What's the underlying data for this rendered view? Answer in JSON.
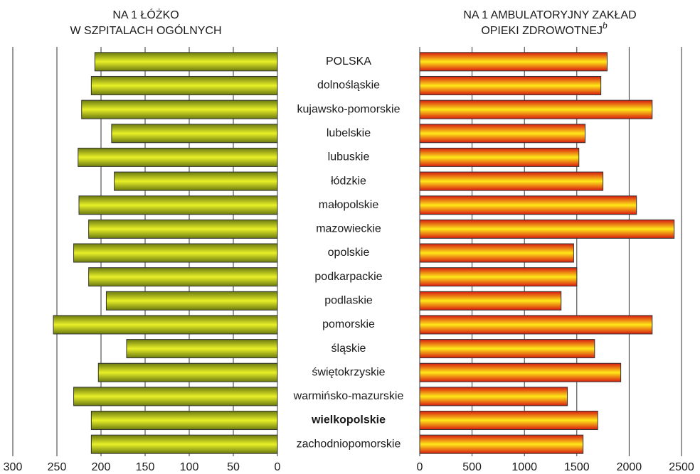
{
  "chart_data": [
    {
      "type": "hbar",
      "title": [
        "NA 1 ŁÓŻKO",
        "W SZPITALACH OGÓLNYCH"
      ],
      "categories": [
        "POLSKA",
        "dolnośląskie",
        "kujawsko-pomorskie",
        "lubelskie",
        "lubuskie",
        "łódzkie",
        "małopolskie",
        "mazowieckie",
        "opolskie",
        "podkarpackie",
        "podlaskie",
        "pomorskie",
        "śląskie",
        "świętokrzyskie",
        "warmińsko-mazurskie",
        "wielkopolskie",
        "zachodniopomorskie"
      ],
      "highlight": 15,
      "values": [
        207,
        211,
        222,
        188,
        226,
        185,
        225,
        214,
        231,
        214,
        194,
        254,
        171,
        203,
        231,
        211,
        211
      ],
      "color": [
        "#6b7a10",
        "#e8f028"
      ],
      "xlim": [
        300,
        0
      ],
      "xticks": [
        300,
        250,
        200,
        150,
        100,
        50,
        0
      ],
      "grid": true
    },
    {
      "type": "hbar",
      "title": [
        "NA 1 AMBULATORYJNY ZAKŁAD",
        "OPIEKI ZDROWOTNEJ"
      ],
      "footnote_marker": "b",
      "values": [
        1790,
        1730,
        2220,
        1580,
        1520,
        1750,
        2070,
        2430,
        1470,
        1500,
        1350,
        2220,
        1670,
        1920,
        1410,
        1700,
        1560
      ],
      "color": [
        "#d81a10",
        "#ffe818"
      ],
      "xlim": [
        0,
        2500
      ],
      "xticks": [
        0,
        500,
        1000,
        1500,
        2000,
        2500
      ],
      "grid": true
    }
  ]
}
